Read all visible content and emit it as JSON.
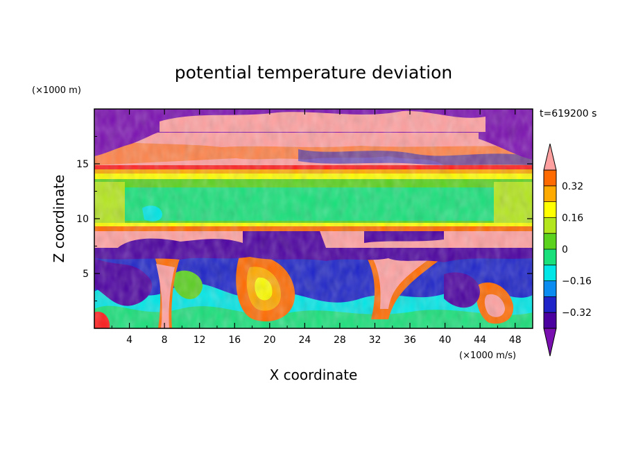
{
  "chart_data": {
    "type": "heatmap",
    "title": "potential temperature deviation",
    "xlabel": "X coordinate",
    "ylabel": "Z coordinate",
    "x_unit_label": "(×1000 m/s)",
    "y_unit_label": "(×1000 m)",
    "time_label": "t=619200 s",
    "xlim": [
      0,
      50
    ],
    "ylim": [
      0,
      20
    ],
    "x_ticks": [
      "4",
      "8",
      "12",
      "16",
      "20",
      "24",
      "28",
      "32",
      "36",
      "40",
      "44",
      "48"
    ],
    "y_ticks": [
      "5",
      "10",
      "15"
    ],
    "x_tick_values": [
      4,
      8,
      12,
      16,
      20,
      24,
      28,
      32,
      36,
      40,
      44,
      48
    ],
    "y_tick_values": [
      5,
      10,
      15
    ],
    "colorbar": {
      "levels": [
        -0.4,
        -0.32,
        -0.24,
        -0.16,
        -0.08,
        0,
        0.08,
        0.16,
        0.24,
        0.32,
        0.4
      ],
      "tick_labels": [
        "0.32",
        "0.16",
        "0",
        "−0.16",
        "−0.32"
      ],
      "tick_values": [
        0.32,
        0.16,
        0,
        -0.16,
        -0.32
      ],
      "colors": [
        "#7a0fb0",
        "#4b00a0",
        "#1e24c8",
        "#0a8cf0",
        "#00e6e6",
        "#19e07a",
        "#5ad21e",
        "#b4e61e",
        "#ffff00",
        "#ffaa00",
        "#ff6a00",
        "#ff1e1e",
        "#ffa0a0"
      ],
      "extend": "both"
    },
    "bands": [
      {
        "z_range": [
          0,
          7.5
        ],
        "description_value": "mixed",
        "dominant": [
          -0.32,
          0.4
        ]
      },
      {
        "z_range": [
          7.5,
          8.5
        ],
        "dominant": 0.4
      },
      {
        "z_range": [
          8.5,
          9.2
        ],
        "dominant": 0.32
      },
      {
        "z_range": [
          9.2,
          13.5
        ],
        "dominant": 0.0
      },
      {
        "z_range": [
          13.5,
          14.5
        ],
        "dominant": 0.24
      },
      {
        "z_range": [
          14.5,
          18
        ],
        "dominant": 0.4
      },
      {
        "z_range": [
          18,
          20
        ],
        "dominant": -0.4
      }
    ]
  }
}
